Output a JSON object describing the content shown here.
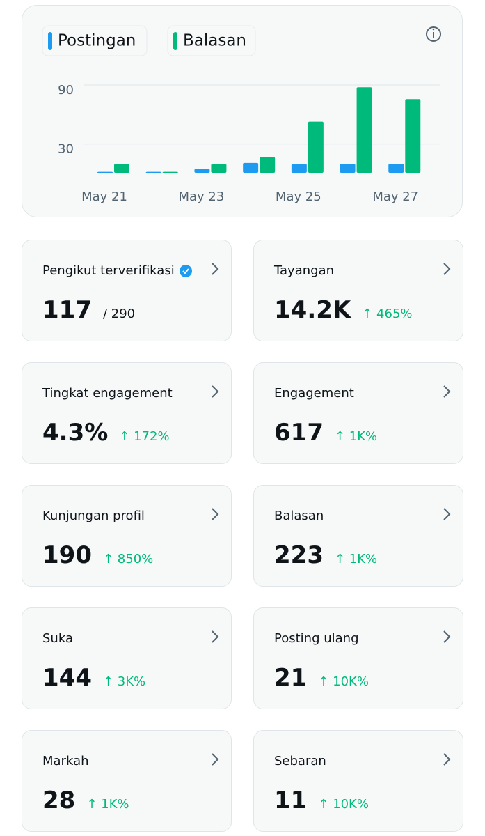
{
  "chart_data": {
    "type": "bar",
    "categories": [
      "May 21",
      null,
      "May 23",
      null,
      "May 25",
      null,
      "May 27"
    ],
    "series": [
      {
        "name": "Postingan",
        "color": "#1d9bf0",
        "values": [
          1,
          1,
          4,
          10,
          9,
          9,
          9
        ]
      },
      {
        "name": "Balasan",
        "color": "#00ba7c",
        "values": [
          9,
          1,
          9,
          16,
          52,
          87,
          75
        ]
      }
    ],
    "ylim": [
      0,
      95
    ],
    "yticks": [
      30,
      90
    ],
    "grid": true
  },
  "cards": [
    {
      "label": "Pengikut terverifikasi",
      "value": "117",
      "total": "/ 290"
    },
    {
      "label": "Tayangan",
      "value": "14.2K",
      "change": "↑ 465%"
    },
    {
      "label": "Tingkat engagement",
      "value": "4.3%",
      "change": "↑ 172%"
    },
    {
      "label": "Engagement",
      "value": "617",
      "change": "↑ 1K%"
    },
    {
      "label": "Kunjungan profil",
      "value": "190",
      "change": "↑ 850%"
    },
    {
      "label": "Balasan",
      "value": "223",
      "change": "↑ 1K%"
    },
    {
      "label": "Suka",
      "value": "144",
      "change": "↑ 3K%"
    },
    {
      "label": "Posting ulang",
      "value": "21",
      "change": "↑ 10K%"
    },
    {
      "label": "Markah",
      "value": "28",
      "change": "↑ 1K%"
    },
    {
      "label": "Sebaran",
      "value": "11",
      "change": "↑ 10K%"
    }
  ]
}
